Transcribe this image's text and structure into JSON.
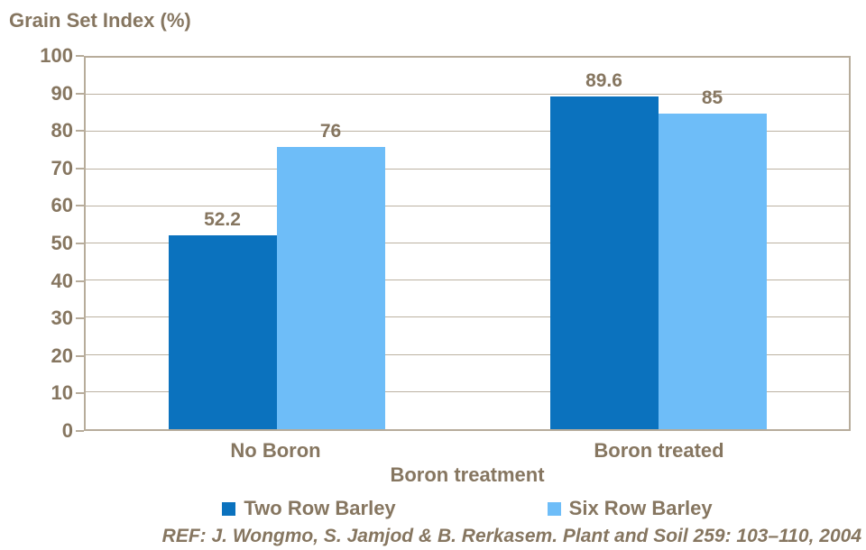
{
  "chart_data": {
    "type": "bar",
    "title": "Grain Set Index (%)",
    "xlabel": "Boron treatment",
    "ylabel": "",
    "categories": [
      "No Boron",
      "Boron treated"
    ],
    "series": [
      {
        "name": "Two Row Barley",
        "color": "#0B72BE",
        "values": [
          52.2,
          89.6
        ]
      },
      {
        "name": "Six Row Barley",
        "color": "#6EBDF8",
        "values": [
          76,
          85
        ]
      }
    ],
    "data_labels": [
      "52.2",
      "76",
      "89.6",
      "85"
    ],
    "ylim": [
      0,
      100
    ],
    "ytick_step": 10,
    "yticks": [
      0,
      10,
      20,
      30,
      40,
      50,
      60,
      70,
      80,
      90,
      100
    ],
    "grid": true,
    "legend_position": "bottom",
    "show_data_labels": true
  },
  "footer": {
    "text": "REF: J. Wongmo, S. Jamjod & B. Rerkasem. Plant and Soil 259: 103–110, 2004"
  },
  "colors": {
    "text_brown": "#867660",
    "axis_tan": "#B7AC9B",
    "gridline": "#BCB2A2",
    "series1_blue": "#0B72BE",
    "series2_blue": "#6EBDF8",
    "background": "#FFFFFF"
  }
}
